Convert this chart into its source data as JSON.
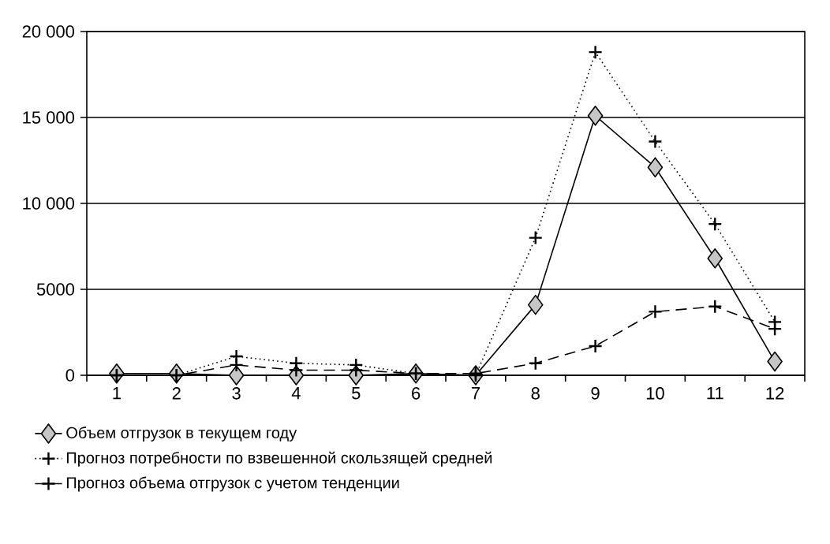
{
  "chart_data": {
    "type": "line",
    "categories": [
      "1",
      "2",
      "3",
      "4",
      "5",
      "6",
      "7",
      "8",
      "9",
      "10",
      "11",
      "12"
    ],
    "series": [
      {
        "name": "Объем отгрузок в текущем году",
        "color": "#000000",
        "marker": "diamond",
        "line_style": "solid",
        "values": [
          100,
          100,
          0,
          0,
          0,
          100,
          0,
          4100,
          15100,
          12100,
          6800,
          800
        ]
      },
      {
        "name": "Прогноз потребности по взвешенной скользящей средней",
        "color": "#000000",
        "marker": "cross",
        "line_style": "dotted",
        "values": [
          0,
          0,
          1100,
          700,
          600,
          100,
          0,
          8000,
          18800,
          13600,
          8800,
          3100
        ]
      },
      {
        "name": "Прогноз объема отгрузок с учетом тенденции",
        "color": "#000000",
        "marker": "cross",
        "line_style": "dashed",
        "values": [
          0,
          0,
          600,
          300,
          300,
          100,
          100,
          700,
          1700,
          3700,
          4000,
          2700
        ]
      }
    ],
    "ylim": [
      0,
      20000
    ],
    "yticks": [
      0,
      5000,
      {
        "value": 10000,
        "label": "10 000"
      },
      {
        "value": 15000,
        "label": "15 000"
      },
      {
        "value": 20000,
        "label": "20 000"
      }
    ],
    "grid": "y",
    "legend": "bottom"
  }
}
